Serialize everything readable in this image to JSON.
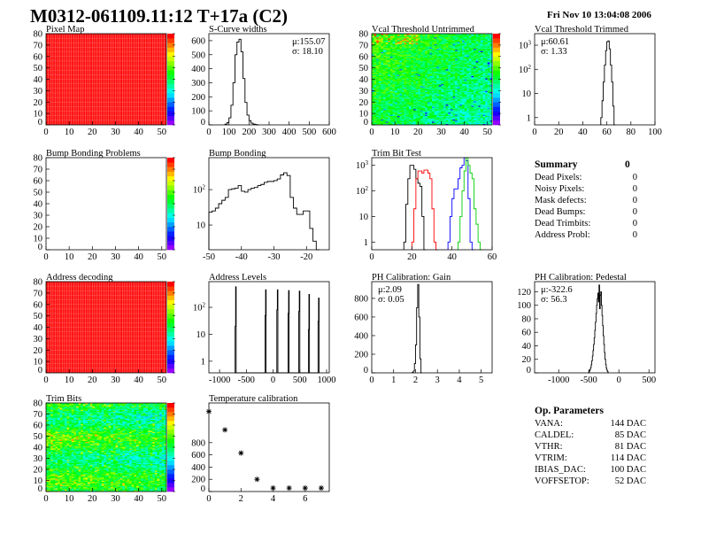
{
  "header": {
    "title": "M0312-061109.11:12 T+17a (C2)",
    "date": "Fri Nov 10 13:04:08 2006"
  },
  "colors": {
    "hist": "#000000",
    "trim_black": "#000000",
    "trim_red": "#ff0000",
    "trim_blue": "#0000ff",
    "trim_green": "#00d000",
    "frame": "#000000"
  },
  "summary": {
    "title": "Summary",
    "total": "0",
    "rows": [
      {
        "label": "Dead Pixels:",
        "value": "0"
      },
      {
        "label": "Noisy Pixels:",
        "value": "0"
      },
      {
        "label": "Mask defects:",
        "value": "0"
      },
      {
        "label": "Dead Bumps:",
        "value": "0"
      },
      {
        "label": "Dead Trimbits:",
        "value": "0"
      },
      {
        "label": "Address Probl:",
        "value": "0"
      }
    ]
  },
  "op_parameters": {
    "title": "Op. Parameters",
    "rows": [
      {
        "label": "VANA:",
        "value": "144 DAC"
      },
      {
        "label": "CALDEL:",
        "value": "85 DAC"
      },
      {
        "label": "VTHR:",
        "value": "81 DAC"
      },
      {
        "label": "VTRIM:",
        "value": "114 DAC"
      },
      {
        "label": "IBIAS_DAC:",
        "value": "100 DAC"
      },
      {
        "label": "VOFFSETOP:",
        "value": "52 DAC"
      }
    ]
  },
  "chart_data": [
    {
      "id": "pixel-map",
      "type": "heatmap",
      "title": "Pixel Map",
      "xlim": [
        0,
        52
      ],
      "ylim": [
        0,
        80
      ],
      "zlim": [
        0,
        10
      ],
      "uniform_value": 10,
      "xticks": [
        "0",
        "10",
        "20",
        "30",
        "40",
        "50"
      ],
      "yticks": [
        "0",
        "10",
        "20",
        "30",
        "40",
        "50",
        "60",
        "70",
        "80"
      ]
    },
    {
      "id": "s-curve-widths",
      "type": "histogram",
      "title": "S-Curve widths",
      "xlim": [
        0,
        600
      ],
      "ylim": [
        0,
        650
      ],
      "log": false,
      "xticks": [
        "0",
        "100",
        "200",
        "300",
        "400",
        "500",
        "600"
      ],
      "yticks": [
        "0",
        "100",
        "200",
        "300",
        "400",
        "500",
        "600"
      ],
      "stats": [
        "μ:155.07",
        "σ: 18.10"
      ],
      "series": [
        {
          "color": "#000000",
          "binwidth": 10,
          "x": [
            80,
            90,
            100,
            110,
            120,
            130,
            140,
            150,
            160,
            170,
            180,
            190,
            200,
            210,
            220,
            230,
            240
          ],
          "y": [
            5,
            15,
            50,
            140,
            300,
            500,
            590,
            610,
            520,
            330,
            160,
            70,
            30,
            12,
            6,
            3,
            0
          ]
        }
      ]
    },
    {
      "id": "vcal-threshold-untrimmed",
      "type": "heatmap",
      "title": "Vcal Threshold Untrimmed",
      "xlim": [
        0,
        52
      ],
      "ylim": [
        0,
        80
      ],
      "zlim": [
        95,
        135
      ],
      "xticks": [
        "0",
        "10",
        "20",
        "30",
        "40",
        "50"
      ],
      "yticks": [
        "0",
        "10",
        "20",
        "30",
        "40",
        "50",
        "60",
        "70",
        "80"
      ]
    },
    {
      "id": "vcal-threshold-trimmed",
      "type": "histogram",
      "title": "Vcal Threshold Trimmed",
      "xlim": [
        0,
        100
      ],
      "ylim": [
        0.5,
        3000
      ],
      "log": true,
      "xticks": [
        "0",
        "20",
        "40",
        "60",
        "80",
        "100"
      ],
      "yticks": [
        "1",
        "10",
        "10^2",
        "10^3"
      ],
      "stats": [
        "μ:60.61",
        "σ: 1.33"
      ],
      "series": [
        {
          "color": "#000000",
          "binwidth": 1,
          "x": [
            55,
            56,
            57,
            58,
            59,
            60,
            61,
            62,
            63,
            64,
            65,
            66
          ],
          "y": [
            1,
            5,
            30,
            150,
            600,
            1400,
            1500,
            700,
            150,
            30,
            3,
            0
          ]
        }
      ]
    },
    {
      "id": "bump-bonding-problems",
      "type": "heatmap",
      "title": "Bump Bonding Problems",
      "xlim": [
        0,
        52
      ],
      "ylim": [
        0,
        80
      ],
      "zlim": [
        0,
        1
      ],
      "empty": true,
      "xticks": [
        "0",
        "10",
        "20",
        "30",
        "40",
        "50"
      ],
      "yticks": [
        "0",
        "10",
        "20",
        "30",
        "40",
        "50",
        "60",
        "70",
        "80"
      ]
    },
    {
      "id": "bump-bonding",
      "type": "histogram",
      "title": "Bump Bonding",
      "xlim": [
        -50,
        -13
      ],
      "ylim": [
        2,
        800
      ],
      "log": true,
      "xticks": [
        "-50",
        "-40",
        "-30",
        "-20"
      ],
      "yticks": [
        "10",
        "10^2"
      ],
      "series": [
        {
          "color": "#000000",
          "binwidth": 1,
          "x": [
            -50,
            -49,
            -48,
            -47,
            -46,
            -45,
            -44,
            -43,
            -42,
            -41,
            -40,
            -39,
            -38,
            -37,
            -36,
            -35,
            -34,
            -33,
            -32,
            -31,
            -30,
            -29,
            -28,
            -27,
            -26,
            -25,
            -24,
            -23,
            -22,
            -21,
            -20,
            -19,
            -18,
            -17
          ],
          "y": [
            23,
            25,
            30,
            40,
            50,
            60,
            100,
            105,
            110,
            130,
            90,
            85,
            100,
            110,
            115,
            130,
            140,
            160,
            170,
            170,
            180,
            200,
            260,
            300,
            250,
            60,
            30,
            20,
            20,
            25,
            25,
            8,
            3.5,
            0
          ]
        }
      ]
    },
    {
      "id": "trim-bit-test",
      "type": "histogram",
      "title": "Trim Bit Test",
      "xlim": [
        0,
        60
      ],
      "ylim": [
        0.5,
        2000
      ],
      "log": true,
      "xticks": [
        "0",
        "20",
        "40",
        "60"
      ],
      "yticks": [
        "1",
        "10",
        "10^2",
        "10^3"
      ],
      "series": [
        {
          "color": "#000000",
          "binwidth": 1,
          "x": [
            16,
            17,
            18,
            19,
            20,
            21,
            22,
            23,
            24,
            25,
            26
          ],
          "y": [
            1,
            30,
            300,
            1000,
            1000,
            700,
            300,
            200,
            150,
            10,
            0
          ]
        },
        {
          "color": "#ff0000",
          "binwidth": 1,
          "x": [
            20,
            21,
            22,
            23,
            24,
            25,
            26,
            27,
            28,
            29,
            30,
            31,
            32
          ],
          "y": [
            1,
            20,
            300,
            600,
            600,
            500,
            650,
            650,
            500,
            300,
            20,
            1,
            0
          ]
        },
        {
          "color": "#0000ff",
          "binwidth": 1,
          "x": [
            38,
            39,
            40,
            41,
            42,
            43,
            44,
            45,
            46,
            47,
            48,
            49,
            50
          ],
          "y": [
            1,
            10,
            50,
            120,
            120,
            300,
            800,
            1000,
            2000,
            1500,
            50,
            1,
            0
          ]
        },
        {
          "color": "#00d000",
          "binwidth": 1,
          "x": [
            43,
            44,
            45,
            46,
            47,
            48,
            49,
            50,
            51,
            52,
            53,
            54
          ],
          "y": [
            1,
            10,
            100,
            600,
            2000,
            1000,
            500,
            300,
            20,
            5,
            1,
            0
          ]
        }
      ]
    },
    {
      "id": "address-decoding",
      "type": "heatmap",
      "title": "Address decoding",
      "xlim": [
        0,
        52
      ],
      "ylim": [
        0,
        80
      ],
      "zlim": [
        0,
        1
      ],
      "uniform_value": 1,
      "xticks": [
        "0",
        "10",
        "20",
        "30",
        "40",
        "50"
      ],
      "yticks": [
        "0",
        "10",
        "20",
        "30",
        "40",
        "50",
        "60",
        "70",
        "80"
      ]
    },
    {
      "id": "address-levels",
      "type": "histogram",
      "title": "Address Levels",
      "xlim": [
        -1200,
        1050
      ],
      "ylim": [
        0.37,
        900
      ],
      "log": true,
      "xticks": [
        "-1000",
        "-500",
        "0",
        "500",
        "1000"
      ],
      "yticks": [
        "1",
        "10",
        "10^2"
      ],
      "series": [
        {
          "color": "#000000",
          "binwidth": 10,
          "x": [
            -720,
            -710,
            -700,
            -690,
            -160,
            -150,
            -140,
            -130,
            60,
            70,
            80,
            90,
            270,
            280,
            290,
            300,
            470,
            480,
            490,
            500,
            650,
            660,
            670,
            680,
            830,
            840,
            850,
            860
          ],
          "y": [
            0.3,
            20,
            580,
            0.3,
            0.3,
            50,
            450,
            0.3,
            0.3,
            80,
            450,
            0.3,
            0.3,
            60,
            420,
            0.3,
            0.3,
            70,
            400,
            0.3,
            0.3,
            15,
            300,
            0.3,
            0.3,
            30,
            220,
            0.3
          ]
        }
      ]
    },
    {
      "id": "ph-calibration-gain",
      "type": "histogram",
      "title": "PH Calibration: Gain",
      "xlim": [
        0,
        5.5
      ],
      "ylim": [
        0,
        980
      ],
      "log": false,
      "xticks": [
        "0",
        "1",
        "2",
        "3",
        "4",
        "5"
      ],
      "yticks": [
        "0",
        "200",
        "400",
        "600",
        "800"
      ],
      "stats": [
        "μ:2.09",
        "σ: 0.05"
      ],
      "series": [
        {
          "color": "#000000",
          "binwidth": 0.05,
          "x": [
            1.85,
            1.9,
            1.95,
            2.0,
            2.05,
            2.1,
            2.15,
            2.2,
            2.25
          ],
          "y": [
            5,
            20,
            100,
            300,
            700,
            950,
            600,
            150,
            0
          ]
        }
      ]
    },
    {
      "id": "ph-calibration-pedestal",
      "type": "histogram",
      "title": "PH Calibration: Pedestal",
      "xlim": [
        -1400,
        600
      ],
      "ylim": [
        0,
        135
      ],
      "log": false,
      "xticks": [
        "-1000",
        "-500",
        "0",
        "500"
      ],
      "yticks": [
        "0",
        "20",
        "40",
        "60",
        "80",
        "100",
        "120"
      ],
      "stats": [
        "μ:-322.6",
        "σ: 56.3"
      ],
      "series": [
        {
          "color": "#000000",
          "binwidth": 10,
          "x": [
            -500,
            -490,
            -480,
            -470,
            -460,
            -450,
            -440,
            -430,
            -420,
            -410,
            -400,
            -390,
            -380,
            -370,
            -360,
            -350,
            -340,
            -330,
            -320,
            -310,
            -300,
            -290,
            -280,
            -270,
            -260,
            -250,
            -240,
            -230,
            -220,
            -210,
            -200,
            -190,
            -180
          ],
          "y": [
            1,
            3,
            5,
            8,
            12,
            18,
            25,
            33,
            42,
            52,
            63,
            75,
            88,
            100,
            110,
            118,
            105,
            130,
            95,
            115,
            120,
            100,
            85,
            70,
            55,
            42,
            30,
            20,
            12,
            7,
            4,
            2,
            0
          ]
        }
      ]
    },
    {
      "id": "trim-bits",
      "type": "heatmap",
      "title": "Trim Bits",
      "xlim": [
        0,
        52
      ],
      "ylim": [
        0,
        80
      ],
      "zlim": [
        0,
        16
      ],
      "xticks": [
        "0",
        "10",
        "20",
        "30",
        "40",
        "50"
      ],
      "yticks": [
        "0",
        "10",
        "20",
        "30",
        "40",
        "50",
        "60",
        "70",
        "80"
      ]
    },
    {
      "id": "temperature-calibration",
      "type": "scatter",
      "title": "Temperature calibration",
      "xlim": [
        0,
        7.5
      ],
      "ylim": [
        0,
        1450
      ],
      "log": false,
      "xticks": [
        "0",
        "2",
        "4",
        "6"
      ],
      "yticks": [
        "0",
        "200",
        "400",
        "600",
        "800"
      ],
      "series": [
        {
          "color": "#000000",
          "marker": "star",
          "x": [
            0,
            1,
            2,
            3,
            4,
            5,
            6,
            7
          ],
          "y": [
            1310,
            1010,
            630,
            200,
            57,
            57,
            57,
            57
          ]
        }
      ]
    }
  ]
}
